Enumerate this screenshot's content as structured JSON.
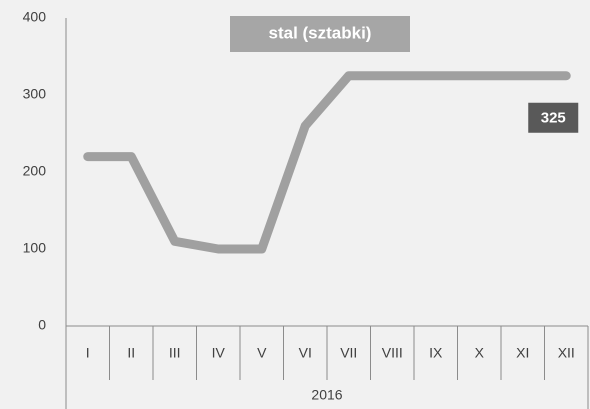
{
  "chart_data": {
    "type": "line",
    "title": "stal (sztabki)",
    "categories": [
      "I",
      "II",
      "III",
      "IV",
      "V",
      "VI",
      "VII",
      "VIII",
      "IX",
      "X",
      "XI",
      "XII"
    ],
    "x_group_label": "2016",
    "values": [
      220,
      220,
      110,
      100,
      100,
      260,
      325,
      325,
      325,
      325,
      325,
      325
    ],
    "color": "#a0a0a0",
    "ylim": [
      0,
      400
    ],
    "yticks": [
      0,
      100,
      200,
      300,
      400
    ],
    "grid": false,
    "labeled_point": 11
  }
}
